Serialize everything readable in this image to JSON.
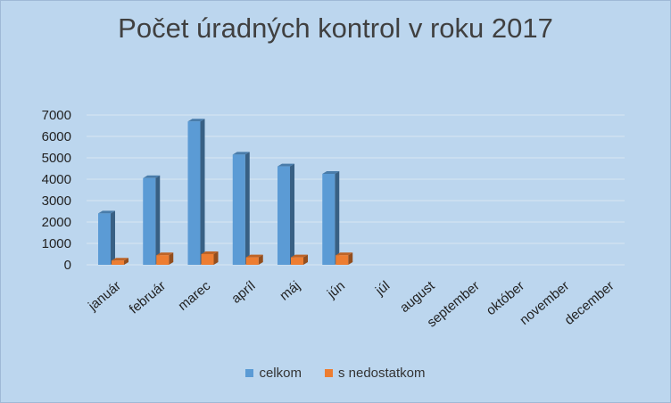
{
  "chart_data": {
    "type": "bar",
    "title": "Počet úradných kontrol v roku 2017",
    "categories": [
      "január",
      "február",
      "marec",
      "apríl",
      "máj",
      "jún",
      "júl",
      "august",
      "september",
      "október",
      "november",
      "december"
    ],
    "series": [
      {
        "name": "celkom",
        "values": [
          2400,
          4050,
          6700,
          5150,
          4600,
          4250,
          null,
          null,
          null,
          null,
          null,
          null
        ],
        "color": "#5b9bd5"
      },
      {
        "name": "s nedostatkom",
        "values": [
          200,
          450,
          500,
          350,
          350,
          450,
          null,
          null,
          null,
          null,
          null,
          null
        ],
        "color": "#ed7d31"
      }
    ],
    "yticks": [
      "0",
      "1000",
      "2000",
      "3000",
      "4000",
      "5000",
      "6000",
      "7000"
    ],
    "ylim": [
      0,
      7000
    ],
    "grid": true,
    "legend_position": "bottom",
    "style": "3d-column"
  }
}
